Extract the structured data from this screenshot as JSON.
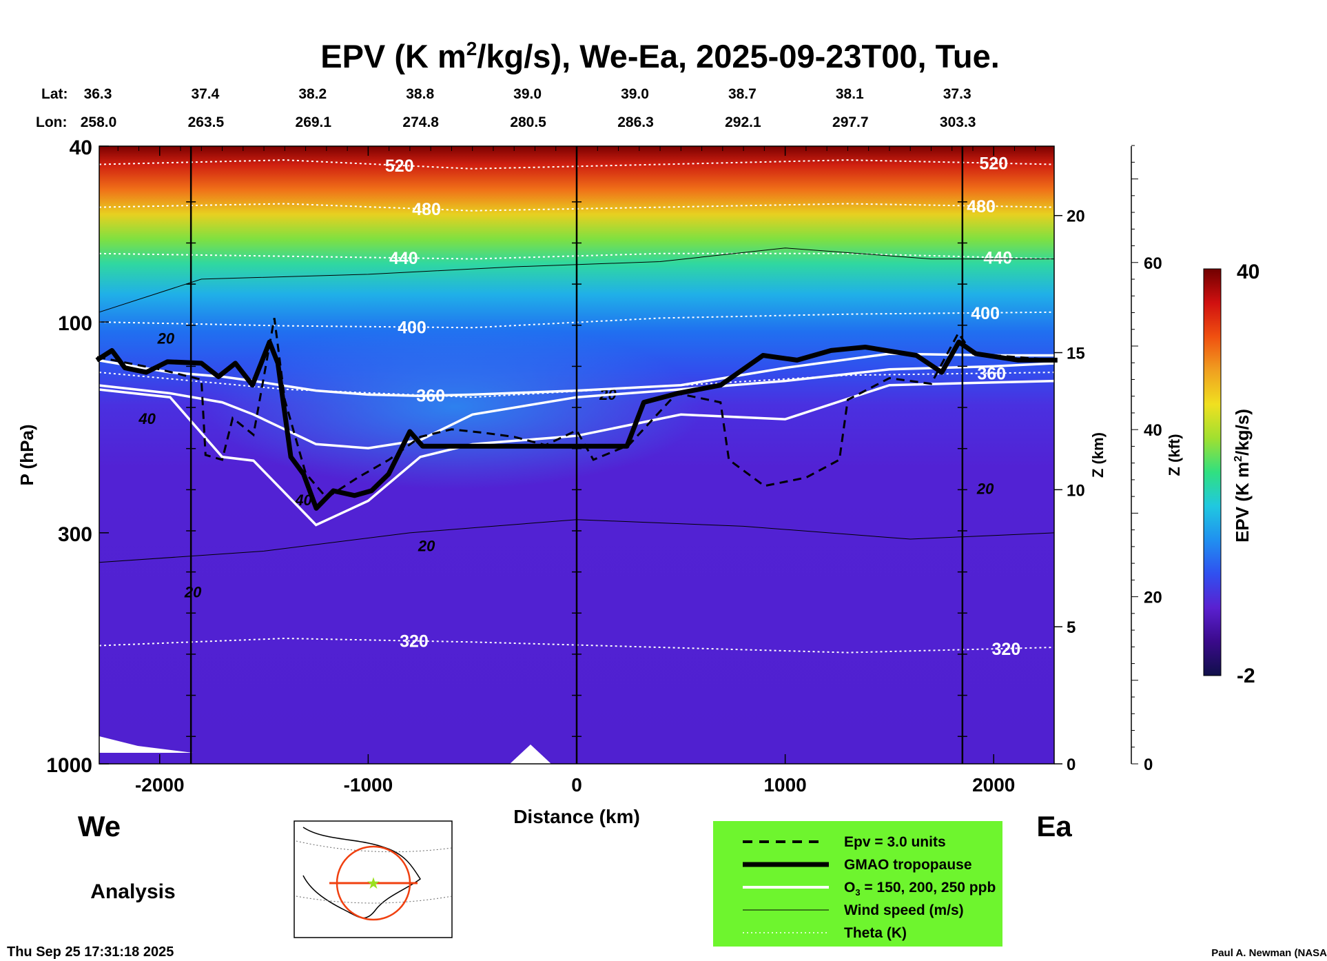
{
  "chart_data": {
    "type": "heatmap",
    "title": "EPV (K m²/kg/s), We-Ea, 2025-09-23T00, Tue.",
    "title_parts": {
      "pre": "EPV (K m",
      "sup": "2",
      "post": "/kg/s), We-Ea, 2025-09-23T00, Tue."
    },
    "lat_label": "Lat:",
    "lon_label": "Lon:",
    "lats": [
      "36.3",
      "37.4",
      "38.2",
      "38.8",
      "39.0",
      "39.0",
      "38.7",
      "38.1",
      "37.3"
    ],
    "lons": [
      "258.0",
      "263.5",
      "269.1",
      "274.8",
      "280.5",
      "286.3",
      "292.1",
      "297.7",
      "303.3"
    ],
    "xlabel": "Distance (km)",
    "ylabel": "P (hPa)",
    "z_km_label": "Z (km)",
    "z_kft_label": "Z (kft)",
    "xlim": [
      -2290,
      2290
    ],
    "ylim_hpa": [
      1000,
      40
    ],
    "x_ticks": [
      -2000,
      -1000,
      0,
      1000,
      2000
    ],
    "x_tick_labels": [
      "-2000",
      "-1000",
      "0",
      "1000",
      "2000"
    ],
    "y_ticks": [
      40,
      100,
      300,
      1000
    ],
    "y_tick_labels": [
      "40",
      "100",
      "300",
      "1000"
    ],
    "z_km_ticks": [
      0,
      5,
      10,
      15,
      20
    ],
    "z_km_tick_labels": [
      "0",
      "5",
      "10",
      "15",
      "20"
    ],
    "z_kft_ticks": [
      0,
      20,
      40,
      60
    ],
    "z_kft_tick_labels": [
      "0",
      "20",
      "40",
      "60"
    ],
    "vertical_markers_km": [
      -1850,
      0,
      1850
    ],
    "colorbar": {
      "label": "EPV (K m²/kg/s)",
      "label_pre": "EPV (K m",
      "label_sup": "2",
      "label_post": "/kg/s)",
      "min": -2,
      "max": 40,
      "min_label": "-2",
      "max_label": "40",
      "colors": [
        "#10104a",
        "#3a0a8a",
        "#5a20d0",
        "#3050f0",
        "#2090f0",
        "#20c8e0",
        "#30e080",
        "#a0e030",
        "#f0e020",
        "#f0a020",
        "#f05010",
        "#d01010",
        "#700000"
      ]
    },
    "theta_lines": [
      {
        "level": "520",
        "label": "520",
        "p": [
          44,
          43,
          45,
          44,
          43,
          44
        ],
        "label_km": -850,
        "label_km2": 2000
      },
      {
        "level": "480",
        "label": "480",
        "p": [
          55,
          54,
          56,
          55,
          54,
          55
        ],
        "label_km": -720,
        "label_km2": 1940
      },
      {
        "level": "440",
        "label": "440",
        "p": [
          70,
          71,
          72,
          70,
          70,
          72
        ],
        "label_km": -830,
        "label_km2": 2020
      },
      {
        "level": "400",
        "label": "400",
        "p": [
          100,
          102,
          103,
          98,
          96,
          95
        ],
        "label_km": -790,
        "label_km2": 1960
      },
      {
        "level": "360",
        "label": "360",
        "p": [
          130,
          142,
          148,
          140,
          132,
          130
        ],
        "label_km": -700,
        "label_km2": 1990
      },
      {
        "level": "320",
        "label": "320",
        "p": [
          540,
          520,
          530,
          545,
          560,
          545
        ],
        "label_km": -780,
        "label_km2": 2060
      }
    ],
    "theta_x_km": [
      -2290,
      -1400,
      -500,
      400,
      1300,
      2290
    ],
    "tropopause": [
      [
        -2302,
        122
      ],
      [
        -2229,
        116
      ],
      [
        -2167,
        127
      ],
      [
        -2065,
        130
      ],
      [
        -1963,
        123
      ],
      [
        -1800,
        124
      ],
      [
        -1718,
        133
      ],
      [
        -1637,
        124
      ],
      [
        -1555,
        139
      ],
      [
        -1473,
        111
      ],
      [
        -1433,
        124
      ],
      [
        -1371,
        202
      ],
      [
        -1310,
        221
      ],
      [
        -1249,
        264
      ],
      [
        -1167,
        241
      ],
      [
        -1065,
        247
      ],
      [
        -984,
        241
      ],
      [
        -902,
        221
      ],
      [
        -800,
        177
      ],
      [
        -739,
        191
      ],
      [
        241,
        191
      ],
      [
        322,
        152
      ],
      [
        486,
        145
      ],
      [
        690,
        139
      ],
      [
        894,
        119
      ],
      [
        1057,
        122
      ],
      [
        1220,
        116
      ],
      [
        1384,
        114
      ],
      [
        1629,
        119
      ],
      [
        1751,
        130
      ],
      [
        1833,
        111
      ],
      [
        1914,
        118
      ],
      [
        2118,
        122
      ],
      [
        2306,
        122
      ]
    ],
    "o3_x_km": [
      -2300,
      -1950,
      -1700,
      -1550,
      -1250,
      -1000,
      -750,
      -500,
      0,
      500,
      1000,
      1500,
      2000,
      2300
    ],
    "o3_lines": [
      {
        "ppb": 150,
        "p": [
          122,
          130,
          133,
          136,
          143,
          146,
          147,
          146,
          143,
          139,
          127,
          118,
          119,
          119
        ]
      },
      {
        "ppb": 200,
        "p": [
          139,
          145,
          152,
          162,
          189,
          193,
          185,
          162,
          148,
          142,
          136,
          128,
          126,
          124
        ]
      },
      {
        "ppb": 250,
        "p": [
          142,
          148,
          202,
          206,
          288,
          254,
          202,
          189,
          181,
          162,
          166,
          139,
          137,
          136
        ]
      }
    ],
    "epv_3_line": [
      [
        -2300,
        120
      ],
      [
        -2000,
        128
      ],
      [
        -1800,
        135
      ],
      [
        -1780,
        200
      ],
      [
        -1700,
        205
      ],
      [
        -1650,
        165
      ],
      [
        -1550,
        180
      ],
      [
        -1450,
        98
      ],
      [
        -1400,
        150
      ],
      [
        -1300,
        220
      ],
      [
        -1200,
        250
      ],
      [
        -1050,
        225
      ],
      [
        -900,
        205
      ],
      [
        -750,
        182
      ],
      [
        -600,
        175
      ],
      [
        -450,
        178
      ],
      [
        -300,
        182
      ],
      [
        -150,
        190
      ],
      [
        0,
        176
      ],
      [
        80,
        205
      ],
      [
        250,
        190
      ],
      [
        480,
        145
      ],
      [
        690,
        152
      ],
      [
        730,
        205
      ],
      [
        900,
        235
      ],
      [
        1100,
        225
      ],
      [
        1260,
        205
      ],
      [
        1300,
        150
      ],
      [
        1500,
        134
      ],
      [
        1700,
        138
      ],
      [
        1830,
        106
      ],
      [
        1900,
        118
      ],
      [
        2300,
        122
      ]
    ],
    "wind_labels": [
      {
        "text": "20",
        "km": -1970,
        "p": 112
      },
      {
        "text": "40",
        "km": -2060,
        "p": 170
      },
      {
        "text": "20",
        "km": 150,
        "p": 150
      },
      {
        "text": "40",
        "km": -1310,
        "p": 260
      },
      {
        "text": "20",
        "km": -720,
        "p": 330
      },
      {
        "text": "20",
        "km": -1840,
        "p": 420
      },
      {
        "text": "20",
        "km": 1960,
        "p": 245
      }
    ]
  },
  "labels": {
    "west": "We",
    "east": "Ea",
    "analysis": "Analysis",
    "timestamp": "Thu Sep 25 17:31:18 2025",
    "credit": "Paul A. Newman (NASA"
  },
  "legend": {
    "background": "#6ef52e",
    "items": [
      {
        "label": "Epv = 3.0 units",
        "style": "dashed"
      },
      {
        "label": "GMAO tropopause",
        "style": "thick"
      },
      {
        "label_pre": "O",
        "label_sub": "3",
        "label_post": " = 150, 200, 250 ppb",
        "style": "white"
      },
      {
        "label": "Wind speed (m/s)",
        "style": "thin"
      },
      {
        "label": "Theta (K)",
        "style": "dotted"
      }
    ]
  }
}
